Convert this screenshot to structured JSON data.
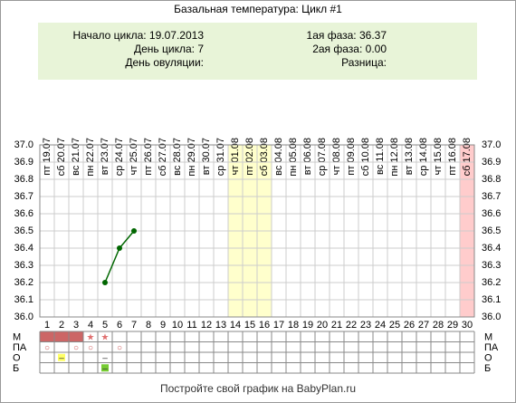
{
  "chart_data": {
    "type": "line",
    "title": "Базальная температура: Цикл #1",
    "info_left": [
      "Начало цикла: 19.07.2013",
      "День цикла: 7",
      "День овуляции:"
    ],
    "info_right": [
      "1ая фаза: 36.37",
      "2ая фаза: 0.00",
      "Разница:"
    ],
    "dates": [
      "пт 19.07",
      "сб 20.07",
      "вс 21.07",
      "пн 22.07",
      "вт 23.07",
      "ср 24.07",
      "чт 25.07",
      "пт 26.07",
      "сб 27.07",
      "вс 28.07",
      "пн 29.07",
      "вт 30.07",
      "ср 31.07",
      "чт 01.08",
      "пт 02.08",
      "сб 03.08",
      "вс 04.08",
      "пн 05.08",
      "вт 06.08",
      "ср 07.08",
      "чт 08.08",
      "пт 09.08",
      "сб 10.08",
      "вс 11.08",
      "пн 12.08",
      "вт 13.08",
      "ср 14.08",
      "чт 15.08",
      "пт 16.08",
      "сб 17.08"
    ],
    "categories": [
      1,
      2,
      3,
      4,
      5,
      6,
      7,
      8,
      9,
      10,
      11,
      12,
      13,
      14,
      15,
      16,
      17,
      18,
      19,
      20,
      21,
      22,
      23,
      24,
      25,
      26,
      27,
      28,
      29,
      30
    ],
    "series": [
      {
        "color": "#006600",
        "values": [
          null,
          null,
          null,
          null,
          36.2,
          36.4,
          36.5,
          null,
          null,
          null,
          null,
          null,
          null,
          null,
          null,
          null,
          null,
          null,
          null,
          null,
          null,
          null,
          null,
          null,
          null,
          null,
          null,
          null,
          null,
          null
        ]
      }
    ],
    "ylim": [
      36.0,
      37.0
    ],
    "yticks": [
      {
        "value": 37.0,
        "label": "37.0"
      },
      36.9,
      36.8,
      36.7,
      36.6,
      36.5,
      36.4,
      36.3,
      36.2,
      36.1,
      {
        "value": 36.0,
        "label": "36.0"
      }
    ],
    "grid": true,
    "highlights": [
      {
        "from": 14,
        "to": 16,
        "color": "#ffffcc"
      },
      {
        "from": 30,
        "to": 30,
        "color": "#ffcccc"
      }
    ],
    "rows": [
      {
        "label": "М",
        "cells": {
          "1": {
            "fill": "#cc6666"
          },
          "2": {
            "fill": "#cc6666"
          },
          "3": {
            "fill": "#cc6666"
          },
          "4": {
            "text": "★",
            "color": "#e07070"
          },
          "5": {
            "text": "★",
            "color": "#e07070"
          }
        }
      },
      {
        "label": "ПА",
        "cells": {
          "1": {
            "text": "○",
            "color": "#cc5555"
          },
          "3": {
            "text": "○",
            "color": "#cc5555"
          },
          "4": {
            "text": "○",
            "color": "#cc5555"
          },
          "6": {
            "text": "○",
            "color": "#cc5555"
          }
        }
      },
      {
        "label": "О",
        "cells": {
          "2": {
            "text": "–",
            "fill": "#ffff66",
            "color": "#333333"
          },
          "5": {
            "text": "–",
            "color": "#333333"
          }
        }
      },
      {
        "label": "Б",
        "cells": {
          "5": {
            "text": "–",
            "fill": "#77cc33",
            "color": "#333333"
          }
        }
      }
    ],
    "footer": "Постройте свой график на BabyPlan.ru"
  }
}
